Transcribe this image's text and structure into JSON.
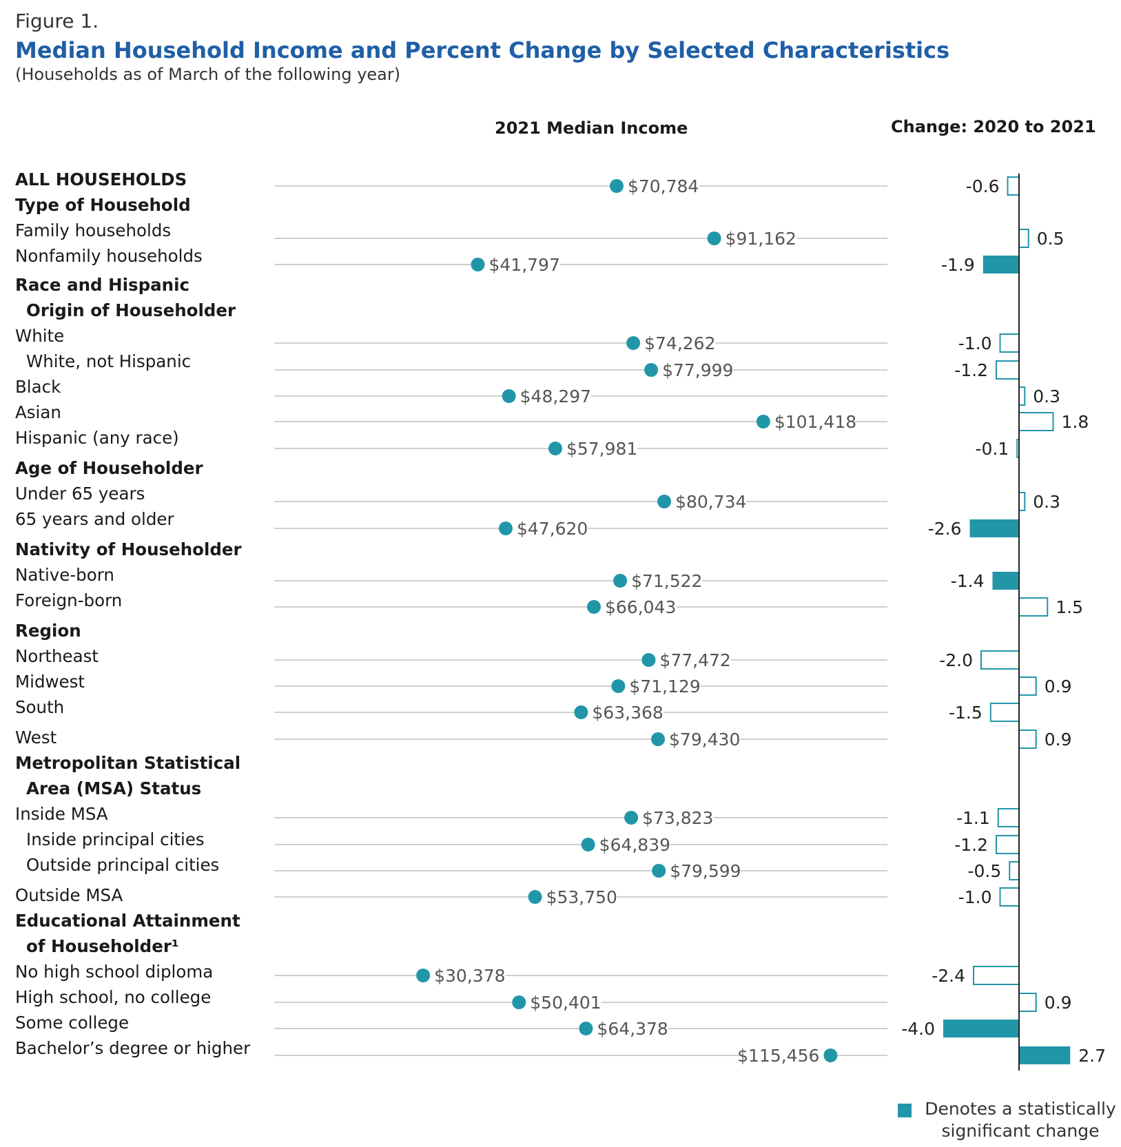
{
  "figure_label": "Figure 1.",
  "title": "Median Household Income and Percent Change by Selected Characteristics",
  "subtitle": "(Households as of March of the following year)",
  "col_income": "2021 Median Income",
  "col_change": "Change: 2020 to 2021",
  "legend": {
    "text": "Denotes a statistically significant change",
    "color": "#2196a8"
  },
  "colors": {
    "accent": "#2196a8",
    "title": "#1f5fa6",
    "leader": "#bfbfbf"
  },
  "labels": [
    {
      "text": "ALL HOUSEHOLDS",
      "style": "bold"
    },
    {
      "text": "Type of Household",
      "style": "bold"
    },
    {
      "text": "Family households",
      "style": "normal"
    },
    {
      "text": "Nonfamily households",
      "style": "normal"
    },
    {
      "text": "Race and Hispanic",
      "style": "bold"
    },
    {
      "text": "Origin of Householder",
      "style": "bold-indent"
    },
    {
      "text": "White",
      "style": "normal"
    },
    {
      "text": "White, not Hispanic",
      "style": "indent"
    },
    {
      "text": "Black",
      "style": "normal"
    },
    {
      "text": "Asian",
      "style": "normal"
    },
    {
      "text": "Hispanic (any race)",
      "style": "normal"
    },
    {
      "text": "Age of Householder",
      "style": "bold"
    },
    {
      "text": "Under 65 years",
      "style": "normal"
    },
    {
      "text": "65 years and older",
      "style": "normal"
    },
    {
      "text": "Nativity of Householder",
      "style": "bold"
    },
    {
      "text": "Native-born",
      "style": "normal"
    },
    {
      "text": "Foreign-born",
      "style": "normal"
    },
    {
      "text": "Region",
      "style": "bold"
    },
    {
      "text": "Northeast",
      "style": "normal"
    },
    {
      "text": "Midwest",
      "style": "normal"
    },
    {
      "text": "South",
      "style": "normal"
    },
    {
      "text": "West",
      "style": "normal"
    },
    {
      "text": "Metropolitan Statistical",
      "style": "bold"
    },
    {
      "text": "Area (MSA) Status",
      "style": "bold-indent"
    },
    {
      "text": "Inside MSA",
      "style": "normal"
    },
    {
      "text": "Inside principal cities",
      "style": "indent"
    },
    {
      "text": "Outside principal cities",
      "style": "indent"
    },
    {
      "text": "Outside MSA",
      "style": "normal"
    },
    {
      "text": "Educational Attainment",
      "style": "bold"
    },
    {
      "text": "of Householder¹",
      "style": "bold-indent"
    },
    {
      "text": "No high school diploma",
      "style": "normal"
    },
    {
      "text": "High school, no college",
      "style": "normal"
    },
    {
      "text": "Some college",
      "style": "normal"
    },
    {
      "text": "Bachelor’s degree or higher",
      "style": "normal"
    }
  ],
  "chart_data": {
    "type": "dot_and_bar",
    "income_range": [
      0,
      120000
    ],
    "change_range": [
      -4.5,
      3.0
    ],
    "rows": [
      {
        "label": "ALL HOUSEHOLDS",
        "income": 70784,
        "income_label": "$70,784",
        "change": -0.6,
        "change_label": "-0.6",
        "significant": false
      },
      {
        "label": "Family households",
        "income": 91162,
        "income_label": "$91,162",
        "change": 0.5,
        "change_label": "0.5",
        "significant": false
      },
      {
        "label": "Nonfamily households",
        "income": 41797,
        "income_label": "$41,797",
        "change": -1.9,
        "change_label": "-1.9",
        "significant": true
      },
      {
        "label": "White",
        "income": 74262,
        "income_label": "$74,262",
        "change": -1.0,
        "change_label": "-1.0",
        "significant": false
      },
      {
        "label": "White, not Hispanic",
        "income": 77999,
        "income_label": "$77,999",
        "change": -1.2,
        "change_label": "-1.2",
        "significant": false
      },
      {
        "label": "Black",
        "income": 48297,
        "income_label": "$48,297",
        "change": 0.3,
        "change_label": "0.3",
        "significant": false
      },
      {
        "label": "Asian",
        "income": 101418,
        "income_label": "$101,418",
        "change": 1.8,
        "change_label": "1.8",
        "significant": false
      },
      {
        "label": "Hispanic (any race)",
        "income": 57981,
        "income_label": "$57,981",
        "change": -0.1,
        "change_label": "-0.1",
        "significant": false
      },
      {
        "label": "Under 65 years",
        "income": 80734,
        "income_label": "$80,734",
        "change": 0.3,
        "change_label": "0.3",
        "significant": false
      },
      {
        "label": "65 years and older",
        "income": 47620,
        "income_label": "$47,620",
        "change": -2.6,
        "change_label": "-2.6",
        "significant": true
      },
      {
        "label": "Native-born",
        "income": 71522,
        "income_label": "$71,522",
        "change": -1.4,
        "change_label": "-1.4",
        "significant": true
      },
      {
        "label": "Foreign-born",
        "income": 66043,
        "income_label": "$66,043",
        "change": 1.5,
        "change_label": "1.5",
        "significant": false
      },
      {
        "label": "Northeast",
        "income": 77472,
        "income_label": "$77,472",
        "change": -2.0,
        "change_label": "-2.0",
        "significant": false
      },
      {
        "label": "Midwest",
        "income": 71129,
        "income_label": "$71,129",
        "change": 0.9,
        "change_label": "0.9",
        "significant": false
      },
      {
        "label": "South",
        "income": 63368,
        "income_label": "$63,368",
        "change": -1.5,
        "change_label": "-1.5",
        "significant": false
      },
      {
        "label": "West",
        "income": 79430,
        "income_label": "$79,430",
        "change": 0.9,
        "change_label": "0.9",
        "significant": false
      },
      {
        "label": "Inside MSA",
        "income": 73823,
        "income_label": "$73,823",
        "change": -1.1,
        "change_label": "-1.1",
        "significant": false
      },
      {
        "label": "Inside principal cities",
        "income": 64839,
        "income_label": "$64,839",
        "change": -1.2,
        "change_label": "-1.2",
        "significant": false
      },
      {
        "label": "Outside principal cities",
        "income": 79599,
        "income_label": "$79,599",
        "change": -0.5,
        "change_label": "-0.5",
        "significant": false
      },
      {
        "label": "Outside MSA",
        "income": 53750,
        "income_label": "$53,750",
        "change": -1.0,
        "change_label": "-1.0",
        "significant": false
      },
      {
        "label": "No high school diploma",
        "income": 30378,
        "income_label": "$30,378",
        "change": -2.4,
        "change_label": "-2.4",
        "significant": false
      },
      {
        "label": "High school, no college",
        "income": 50401,
        "income_label": "$50,401",
        "change": 0.9,
        "change_label": "0.9",
        "significant": false
      },
      {
        "label": "Some college",
        "income": 64378,
        "income_label": "$64,378",
        "change": -4.0,
        "change_label": "-4.0",
        "significant": true
      },
      {
        "label": "Bachelor’s degree or higher",
        "income": 115456,
        "income_label": "$115,456",
        "change": 2.7,
        "change_label": "2.7",
        "significant": true
      }
    ]
  }
}
